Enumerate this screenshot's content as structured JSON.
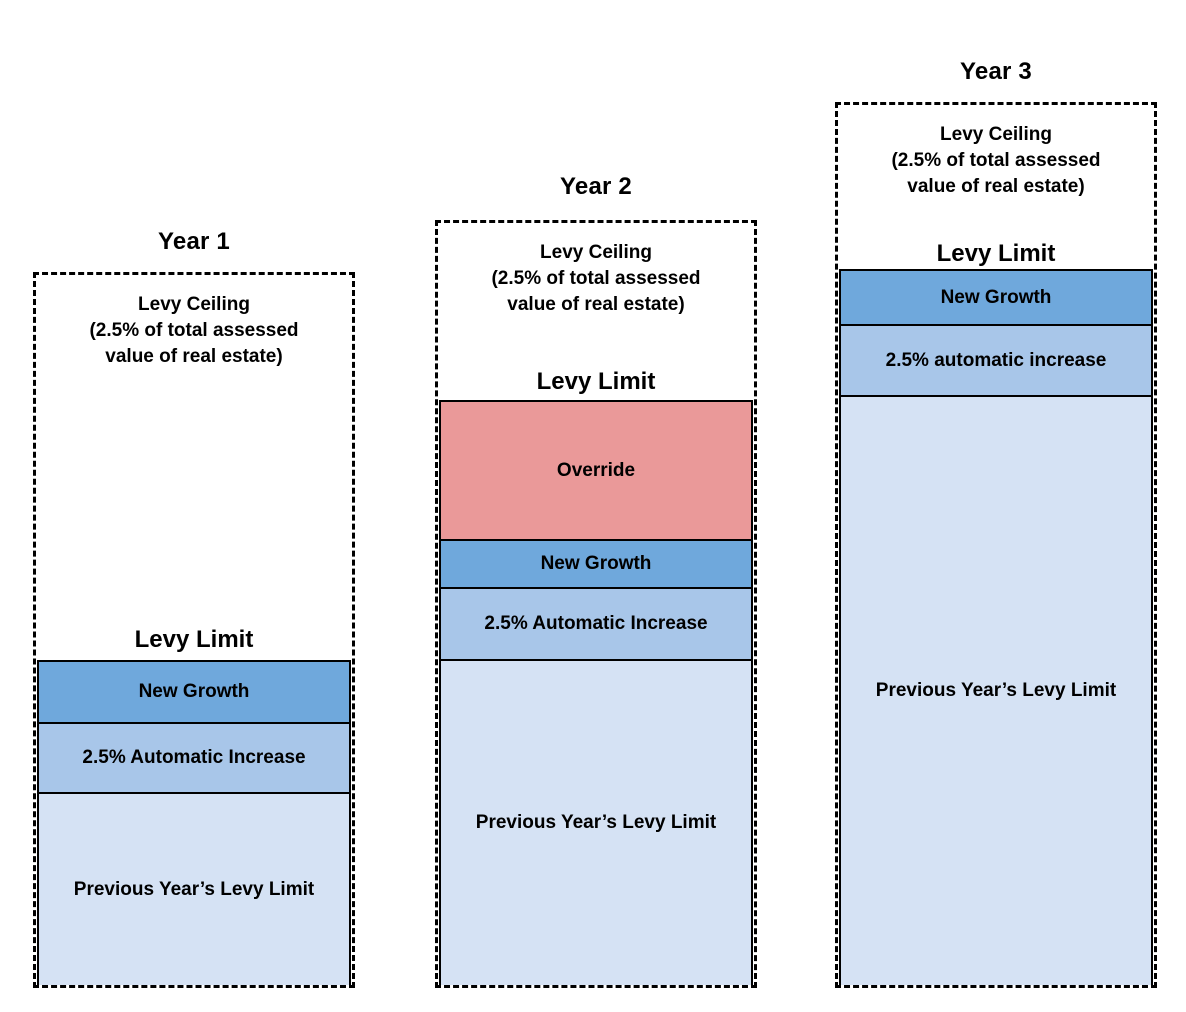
{
  "colors": {
    "new_growth": "#6FA8DC",
    "automatic_increase": "#A8C6E9",
    "previous_levy_limit": "#D5E2F4",
    "override": "#EA9999",
    "border": "#000000",
    "background": "#FFFFFF"
  },
  "columns": [
    {
      "title": "Year 1",
      "ceiling_lines": [
        "Levy Ceiling",
        "(2.5% of total assessed",
        "value of real estate)"
      ],
      "levy_limit_label": "Levy Limit",
      "segments": [
        {
          "label": "New Growth",
          "color": "#6FA8DC"
        },
        {
          "label": "2.5% Automatic Increase",
          "color": "#A8C6E9"
        },
        {
          "label": "Previous Year’s Levy Limit",
          "color": "#D5E2F4"
        }
      ]
    },
    {
      "title": "Year 2",
      "ceiling_lines": [
        "Levy Ceiling",
        "(2.5% of total assessed",
        "value of real estate)"
      ],
      "levy_limit_label": "Levy Limit",
      "segments": [
        {
          "label": "Override",
          "color": "#EA9999"
        },
        {
          "label": "New Growth",
          "color": "#6FA8DC"
        },
        {
          "label": "2.5% Automatic Increase",
          "color": "#A8C6E9"
        },
        {
          "label": "Previous Year’s Levy Limit",
          "color": "#D5E2F4"
        }
      ]
    },
    {
      "title": "Year 3",
      "ceiling_lines": [
        "Levy Ceiling",
        "(2.5% of total assessed",
        "value of real estate)"
      ],
      "levy_limit_label": "Levy Limit",
      "segments": [
        {
          "label": "New Growth",
          "color": "#6FA8DC"
        },
        {
          "label": "2.5% automatic increase",
          "color": "#A8C6E9"
        },
        {
          "label": "Previous Year’s Levy Limit",
          "color": "#D5E2F4"
        }
      ]
    }
  ]
}
